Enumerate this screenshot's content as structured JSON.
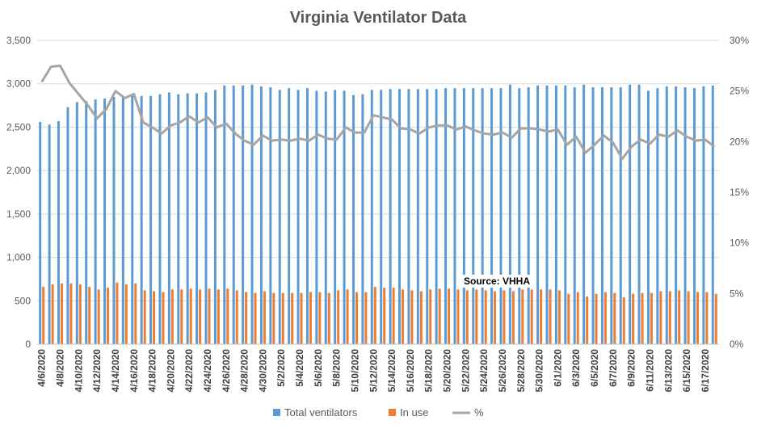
{
  "chart_data": {
    "type": "bar",
    "title": "Virginia Ventilator Data",
    "xlabel": "",
    "ylabel": "",
    "y_left": {
      "min": 0,
      "max": 3500,
      "ticks": [
        "0",
        "500",
        "1,000",
        "1,500",
        "2,000",
        "2,500",
        "3,000",
        "3,500"
      ]
    },
    "y_right": {
      "min": 0,
      "max": 0.3,
      "ticks": [
        "0%",
        "5%",
        "10%",
        "15%",
        "20%",
        "25%",
        "30%"
      ]
    },
    "grid": true,
    "legend_position": "bottom",
    "annotation": "Source: VHHA",
    "x_tick_labels": [
      "4/6/2020",
      "4/8/2020",
      "4/10/2020",
      "4/12/2020",
      "4/14/2020",
      "4/16/2020",
      "4/18/2020",
      "4/20/2020",
      "4/22/2020",
      "4/24/2020",
      "4/26/2020",
      "4/28/2020",
      "4/30/2020",
      "5/2/2020",
      "5/4/2020",
      "5/6/2020",
      "5/8/2020",
      "5/10/2020",
      "5/12/2020",
      "5/14/2020",
      "5/16/2020",
      "5/18/2020",
      "5/20/2020",
      "5/22/2020",
      "5/24/2020",
      "5/26/2020",
      "5/28/2020",
      "5/30/2020",
      "6/1/2020",
      "6/3/2020",
      "6/5/2020",
      "6/7/2020",
      "6/9/2020",
      "6/11/2020",
      "6/13/2020",
      "6/15/2020",
      "6/17/2020"
    ],
    "x": [
      "4/6/2020",
      "4/7/2020",
      "4/8/2020",
      "4/9/2020",
      "4/10/2020",
      "4/11/2020",
      "4/12/2020",
      "4/13/2020",
      "4/14/2020",
      "4/15/2020",
      "4/16/2020",
      "4/17/2020",
      "4/18/2020",
      "4/19/2020",
      "4/20/2020",
      "4/21/2020",
      "4/22/2020",
      "4/23/2020",
      "4/24/2020",
      "4/25/2020",
      "4/26/2020",
      "4/27/2020",
      "4/28/2020",
      "4/29/2020",
      "4/30/2020",
      "5/1/2020",
      "5/2/2020",
      "5/3/2020",
      "5/4/2020",
      "5/5/2020",
      "5/6/2020",
      "5/7/2020",
      "5/8/2020",
      "5/9/2020",
      "5/10/2020",
      "5/11/2020",
      "5/12/2020",
      "5/13/2020",
      "5/14/2020",
      "5/15/2020",
      "5/16/2020",
      "5/17/2020",
      "5/18/2020",
      "5/19/2020",
      "5/20/2020",
      "5/21/2020",
      "5/22/2020",
      "5/23/2020",
      "5/24/2020",
      "5/25/2020",
      "5/26/2020",
      "5/27/2020",
      "5/28/2020",
      "5/29/2020",
      "5/30/2020",
      "5/31/2020",
      "6/1/2020",
      "6/2/2020",
      "6/3/2020",
      "6/4/2020",
      "6/5/2020",
      "6/6/2020",
      "6/7/2020",
      "6/8/2020",
      "6/9/2020",
      "6/10/2020",
      "6/11/2020",
      "6/12/2020",
      "6/13/2020",
      "6/14/2020",
      "6/15/2020",
      "6/16/2020",
      "6/17/2020",
      "6/18/2020"
    ],
    "series": [
      {
        "name": "Total ventilators",
        "type": "bar",
        "axis": "left",
        "color": "#5b9bd5",
        "values": [
          2560,
          2530,
          2570,
          2730,
          2790,
          2800,
          2820,
          2830,
          2850,
          2850,
          2870,
          2860,
          2860,
          2880,
          2900,
          2880,
          2890,
          2890,
          2900,
          2930,
          2980,
          2980,
          2980,
          2990,
          2970,
          2960,
          2930,
          2950,
          2930,
          2950,
          2920,
          2910,
          2930,
          2920,
          2870,
          2880,
          2930,
          2930,
          2940,
          2940,
          2940,
          2940,
          2940,
          2940,
          2950,
          2950,
          2950,
          2950,
          2950,
          2950,
          2950,
          2990,
          2950,
          2960,
          2980,
          2980,
          2980,
          2980,
          2960,
          2990,
          2960,
          2960,
          2960,
          2960,
          2990,
          2990,
          2920,
          2950,
          2970,
          2970,
          2960,
          2950,
          2970,
          2980
        ]
      },
      {
        "name": "In use",
        "type": "bar",
        "axis": "left",
        "color": "#ed7d31",
        "values": [
          660,
          690,
          700,
          700,
          690,
          660,
          630,
          650,
          710,
          690,
          700,
          620,
          610,
          600,
          630,
          630,
          640,
          630,
          640,
          630,
          640,
          620,
          600,
          590,
          610,
          590,
          590,
          590,
          590,
          600,
          600,
          590,
          620,
          630,
          600,
          600,
          660,
          650,
          650,
          630,
          620,
          610,
          630,
          640,
          640,
          630,
          620,
          630,
          620,
          610,
          620,
          610,
          630,
          630,
          630,
          630,
          620,
          580,
          600,
          550,
          580,
          600,
          590,
          540,
          580,
          590,
          590,
          610,
          610,
          620,
          610,
          600,
          600,
          580
        ]
      },
      {
        "name": "%",
        "type": "line",
        "axis": "right",
        "color": "#a5a5a5",
        "values": [
          0.259,
          0.274,
          0.275,
          0.258,
          0.247,
          0.236,
          0.223,
          0.232,
          0.25,
          0.243,
          0.247,
          0.219,
          0.214,
          0.208,
          0.216,
          0.219,
          0.225,
          0.219,
          0.224,
          0.214,
          0.218,
          0.208,
          0.201,
          0.197,
          0.206,
          0.201,
          0.202,
          0.201,
          0.203,
          0.201,
          0.207,
          0.203,
          0.202,
          0.214,
          0.209,
          0.209,
          0.226,
          0.224,
          0.222,
          0.213,
          0.212,
          0.208,
          0.214,
          0.216,
          0.216,
          0.212,
          0.215,
          0.211,
          0.208,
          0.207,
          0.209,
          0.204,
          0.213,
          0.213,
          0.212,
          0.21,
          0.212,
          0.197,
          0.205,
          0.189,
          0.197,
          0.206,
          0.199,
          0.183,
          0.195,
          0.202,
          0.198,
          0.207,
          0.205,
          0.211,
          0.205,
          0.201,
          0.202,
          0.195
        ]
      }
    ]
  }
}
